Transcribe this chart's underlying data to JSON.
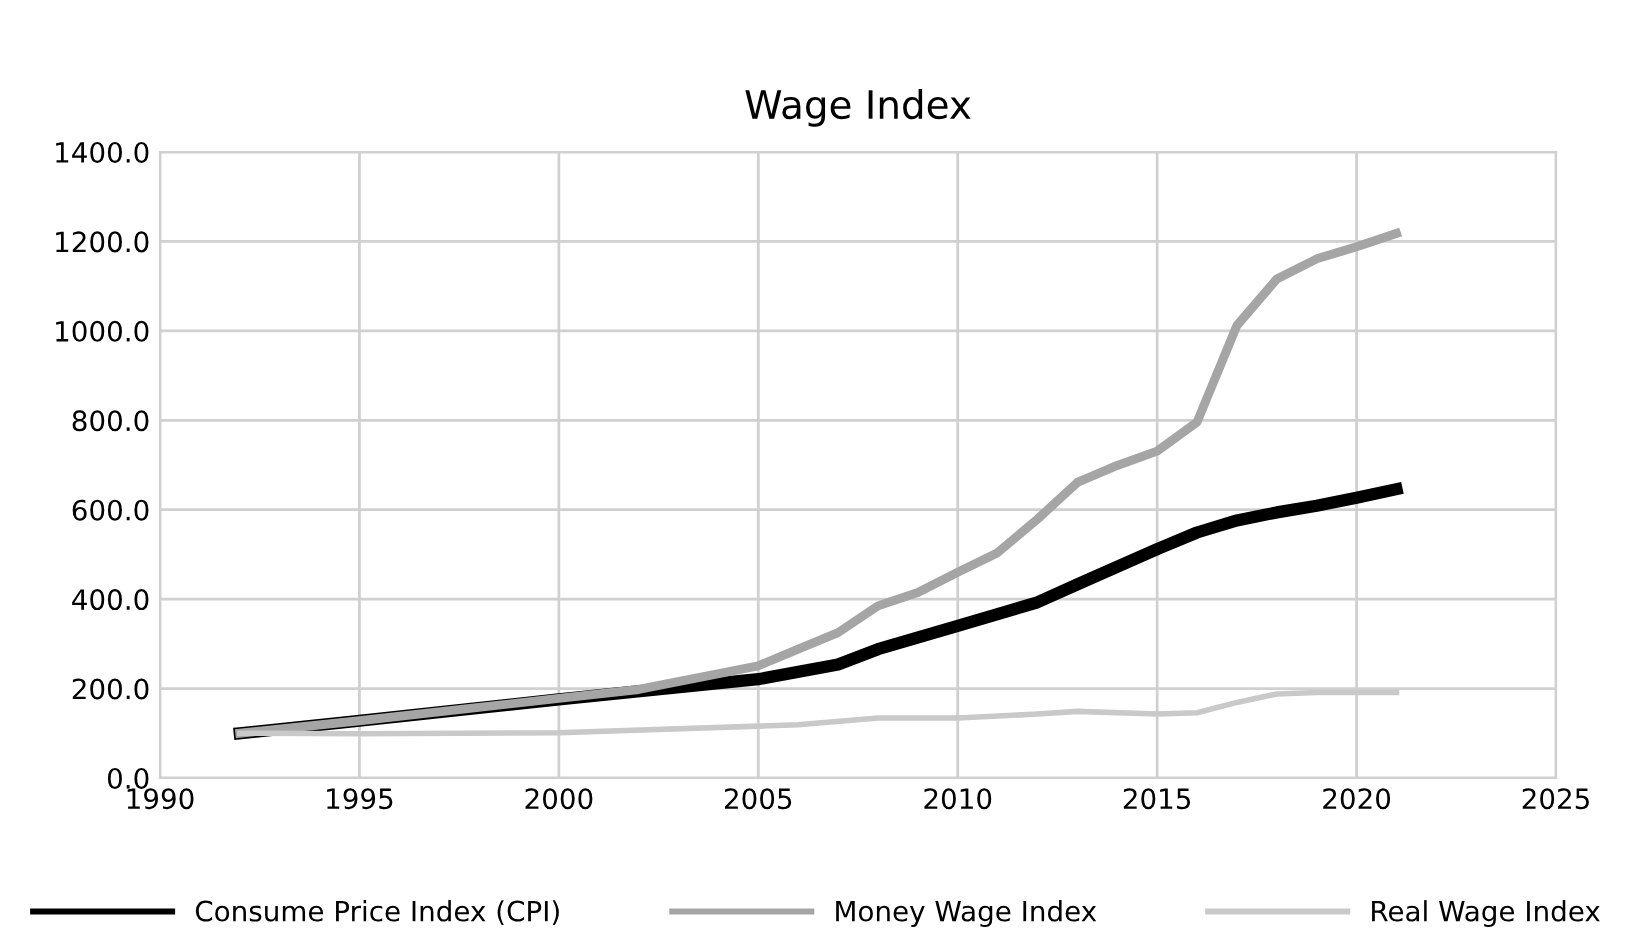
{
  "chart_data": {
    "type": "line",
    "title": "Wage Index",
    "series": [
      {
        "name": "Consume Price Index (CPI)",
        "color": "#000000",
        "x": [
          1992,
          1995,
          2000,
          2005,
          2007,
          2008,
          2010,
          2012,
          2013,
          2015,
          2016,
          2017,
          2018,
          2019,
          2020,
          2021
        ],
        "values": [
          100,
          128,
          176,
          221,
          254,
          288,
          340,
          393,
          433,
          512,
          549,
          576,
          594,
          609,
          627,
          646
        ]
      },
      {
        "name": "Money Wage Index",
        "color": "#a5a5a5",
        "x": [
          1992,
          1995,
          2000,
          2002,
          2005,
          2006,
          2007,
          2008,
          2009,
          2010,
          2011,
          2012,
          2013,
          2014,
          2015,
          2016,
          2017,
          2018,
          2019,
          2020,
          2021
        ],
        "values": [
          100,
          128,
          178,
          198,
          251,
          288,
          325,
          385,
          415,
          460,
          504,
          579,
          661,
          699,
          731,
          796,
          1012,
          1116,
          1161,
          1188,
          1218
        ]
      },
      {
        "name": "Real Wage Index",
        "color": "#c9c9c9",
        "x": [
          1992,
          1995,
          2000,
          2005,
          2006,
          2008,
          2010,
          2012,
          2013,
          2015,
          2016,
          2017,
          2018,
          2019,
          2020,
          2021
        ],
        "values": [
          100,
          99,
          101,
          116,
          119,
          134,
          134,
          143,
          149,
          143,
          146,
          169,
          188,
          191,
          191,
          191
        ]
      }
    ],
    "xlim": [
      1990,
      2025
    ],
    "xticks": [
      1990,
      1995,
      2000,
      2005,
      2010,
      2015,
      2020,
      2025
    ],
    "ylim": [
      0,
      1400
    ],
    "yticks": [
      {
        "value": 0,
        "label": "0.0"
      },
      {
        "value": 200,
        "label": "200.0"
      },
      {
        "value": 400,
        "label": "400.0"
      },
      {
        "value": 600,
        "label": "600.0"
      },
      {
        "value": 800,
        "label": "800.0"
      },
      {
        "value": 1000,
        "label": "1000.0"
      },
      {
        "value": 1200,
        "label": "1200.0"
      },
      {
        "value": 1400,
        "label": "1400.0"
      }
    ],
    "grid": true,
    "legend": "bottom"
  }
}
